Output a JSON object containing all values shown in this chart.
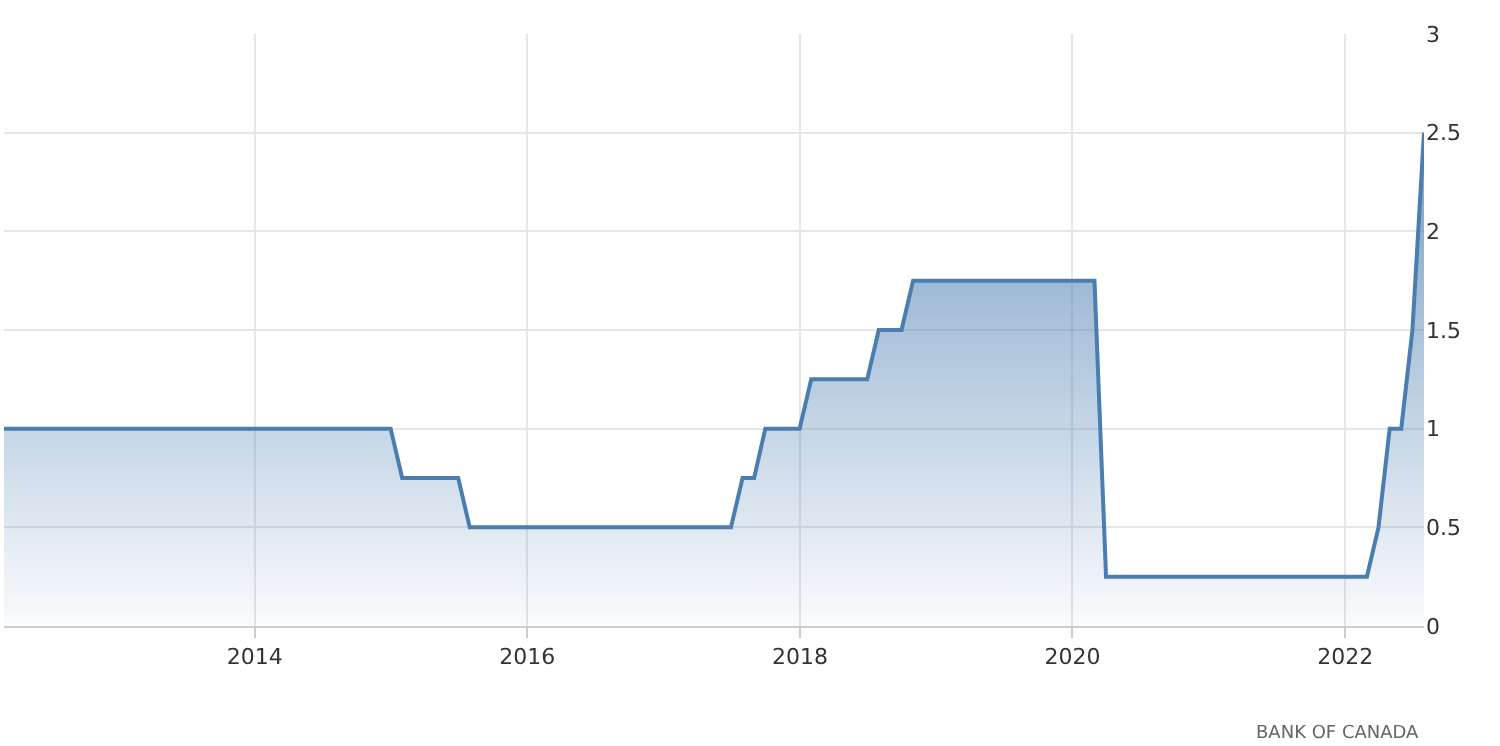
{
  "chart_data": {
    "type": "area",
    "x": [
      "2012-02-29",
      "2014-12-31",
      "2015-01-31",
      "2015-06-30",
      "2015-07-31",
      "2017-06-30",
      "2017-07-31",
      "2017-08-31",
      "2017-09-30",
      "2017-12-31",
      "2018-01-31",
      "2018-06-30",
      "2018-07-31",
      "2018-09-30",
      "2018-10-31",
      "2020-02-29",
      "2020-03-31",
      "2022-02-28",
      "2022-03-31",
      "2022-04-30",
      "2022-05-31",
      "2022-06-30",
      "2022-07-31"
    ],
    "series": [
      {
        "color": "#4a7db0",
        "values": [
          1.0,
          1.0,
          0.75,
          0.75,
          0.5,
          0.5,
          0.75,
          0.75,
          1.0,
          1.0,
          1.25,
          1.25,
          1.5,
          1.5,
          1.75,
          1.75,
          0.25,
          0.25,
          0.5,
          1.0,
          1.0,
          1.5,
          2.5
        ]
      }
    ],
    "xlim": [
      "2012-02-29",
      "2022-07-31"
    ],
    "xticks": [
      {
        "value": "2014-01-01",
        "label": "2014"
      },
      {
        "value": "2016-01-01",
        "label": "2016"
      },
      {
        "value": "2018-01-01",
        "label": "2018"
      },
      {
        "value": "2020-01-01",
        "label": "2020"
      },
      {
        "value": "2022-01-01",
        "label": "2022"
      }
    ],
    "ylim": [
      0,
      3
    ],
    "yticks": [
      0,
      {
        "value": 0.5,
        "label": "0.5"
      },
      1,
      {
        "value": 1.5,
        "label": "1.5"
      },
      2,
      {
        "value": 2.5,
        "label": "2.5"
      },
      3
    ],
    "grid": true,
    "annotations": [
      "BANK OF CANADA"
    ]
  }
}
